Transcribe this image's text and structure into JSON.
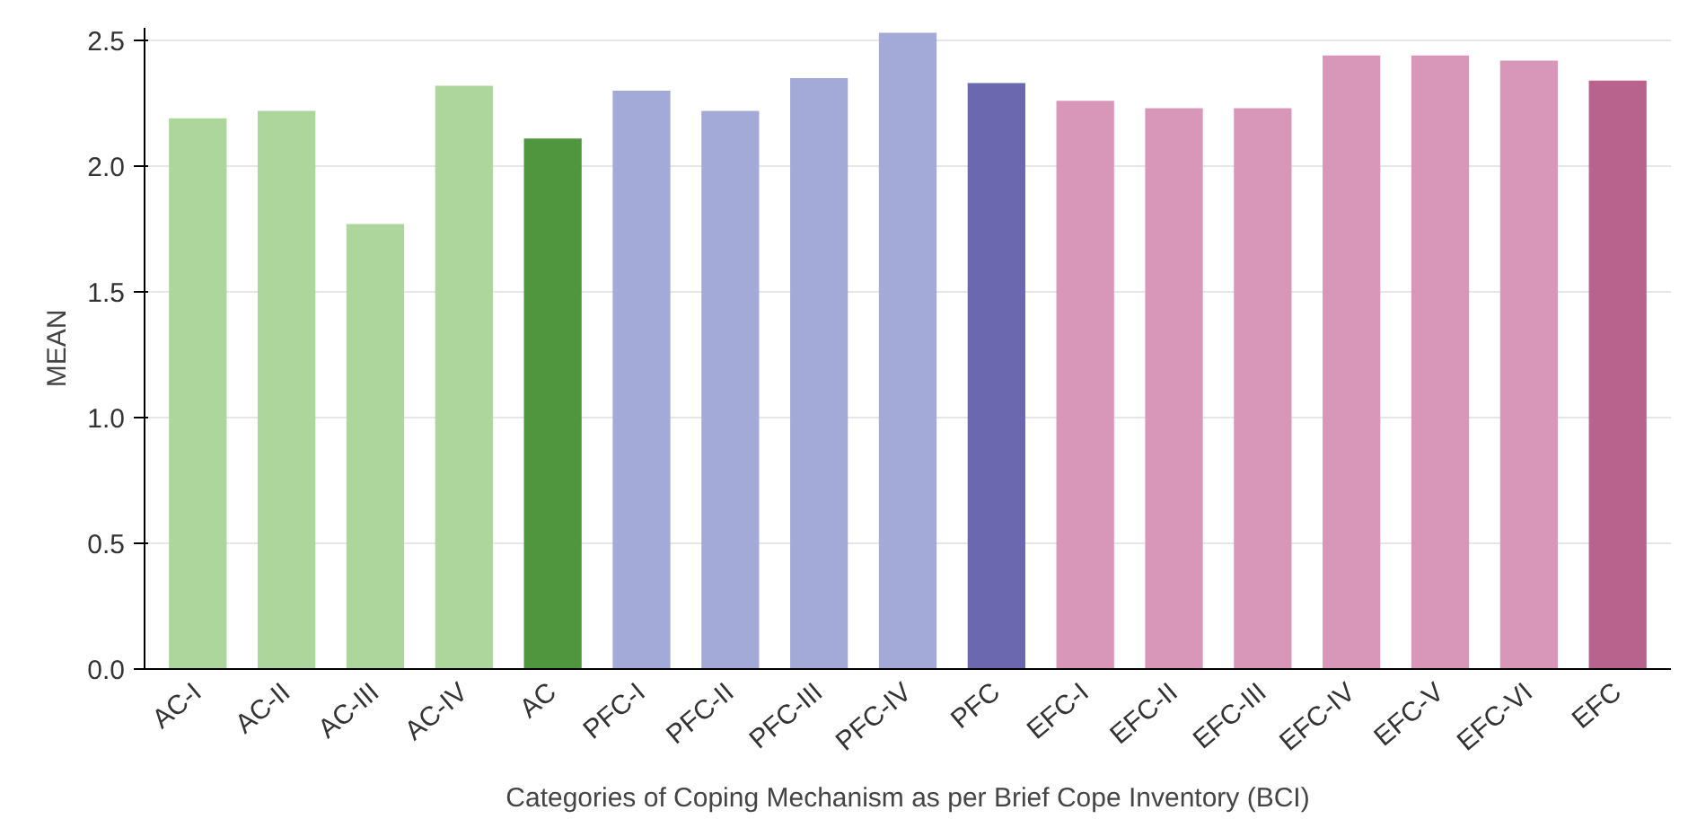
{
  "chart_data": {
    "type": "bar",
    "xlabel": "Categories of Coping Mechanism as per Brief Cope Inventory (BCI)",
    "ylabel": "MEAN",
    "categories": [
      "AC-I",
      "AC-II",
      "AC-III",
      "AC-IV",
      "AC",
      "PFC-I",
      "PFC-II",
      "PFC-III",
      "PFC-IV",
      "PFC",
      "EFC-I",
      "EFC-II",
      "EFC-III",
      "EFC-IV",
      "EFC-V",
      "EFC-VI",
      "EFC"
    ],
    "values": [
      2.19,
      2.22,
      1.77,
      2.32,
      2.11,
      2.3,
      2.22,
      2.35,
      2.53,
      2.33,
      2.26,
      2.23,
      2.23,
      2.44,
      2.44,
      2.42,
      2.34
    ],
    "colors": [
      "#acd69b",
      "#acd69b",
      "#acd69b",
      "#acd69b",
      "#4f963f",
      "#a4aad8",
      "#a4aad8",
      "#a4aad8",
      "#a4aad8",
      "#6b68b0",
      "#d897b9",
      "#d897b9",
      "#d897b9",
      "#d897b9",
      "#d897b9",
      "#d897b9",
      "#b8628e"
    ],
    "ylim": [
      0,
      2.55
    ],
    "yticks": [
      {
        "value": 0,
        "label": "0.0"
      },
      {
        "value": 0.5,
        "label": "0.5"
      },
      {
        "value": 1.0,
        "label": "1.0"
      },
      {
        "value": 1.5,
        "label": "1.5"
      },
      {
        "value": 2.0,
        "label": "2.0"
      },
      {
        "value": 2.5,
        "label": "2.5"
      }
    ],
    "grid": "y"
  }
}
